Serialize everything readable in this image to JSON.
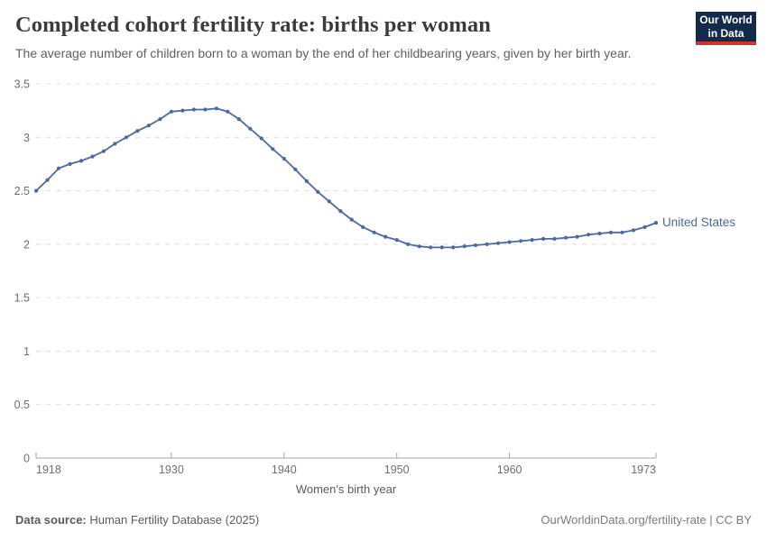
{
  "header": {
    "title": "Completed cohort fertility rate: births per woman",
    "subtitle": "The average number of children born to a woman by the end of her childbearing years, given by her birth year.",
    "logo_line1": "Our World",
    "logo_line2": "in Data"
  },
  "chart_data": {
    "type": "line",
    "title": "Completed cohort fertility rate: births per woman",
    "xlabel": "Women's birth year",
    "ylabel": "",
    "xlim": [
      1918,
      1973
    ],
    "ylim": [
      0,
      3.5
    ],
    "grid": "horizontal-dashed",
    "legend_position": "end-of-line",
    "xticks": [
      "1918",
      "1930",
      "1940",
      "1950",
      "1960",
      "1973"
    ],
    "xtick_values": [
      1918,
      1930,
      1940,
      1950,
      1960,
      1973
    ],
    "yticks": [
      "0",
      "0.5",
      "1",
      "1.5",
      "2",
      "2.5",
      "3",
      "3.5"
    ],
    "ytick_values": [
      0,
      0.5,
      1,
      1.5,
      2,
      2.5,
      3,
      3.5
    ],
    "x": [
      1918,
      1919,
      1920,
      1921,
      1922,
      1923,
      1924,
      1925,
      1926,
      1927,
      1928,
      1929,
      1930,
      1931,
      1932,
      1933,
      1934,
      1935,
      1936,
      1937,
      1938,
      1939,
      1940,
      1941,
      1942,
      1943,
      1944,
      1945,
      1946,
      1947,
      1948,
      1949,
      1950,
      1951,
      1952,
      1953,
      1954,
      1955,
      1956,
      1957,
      1958,
      1959,
      1960,
      1961,
      1962,
      1963,
      1964,
      1965,
      1966,
      1967,
      1968,
      1969,
      1970,
      1971,
      1972,
      1973
    ],
    "series": [
      {
        "name": "United States",
        "color": "#4C6A9C",
        "values": [
          2.5,
          2.6,
          2.71,
          2.75,
          2.78,
          2.82,
          2.87,
          2.94,
          3.0,
          3.06,
          3.11,
          3.17,
          3.24,
          3.25,
          3.26,
          3.26,
          3.27,
          3.24,
          3.17,
          3.08,
          2.99,
          2.89,
          2.8,
          2.7,
          2.59,
          2.49,
          2.4,
          2.31,
          2.23,
          2.16,
          2.11,
          2.07,
          2.04,
          2.0,
          1.98,
          1.97,
          1.97,
          1.97,
          1.98,
          1.99,
          2.0,
          2.01,
          2.02,
          2.03,
          2.04,
          2.05,
          2.05,
          2.06,
          2.07,
          2.09,
          2.1,
          2.11,
          2.11,
          2.13,
          2.16,
          2.2
        ]
      }
    ],
    "axis_color": "#a5a5a5",
    "gridline_color": "#dcdcdc",
    "tick_label_color": "#6e6e6e"
  },
  "footer": {
    "source_label": "Data source:",
    "source_value": " Human Fertility Database (2025)",
    "link": "OurWorldinData.org/fertility-rate | CC BY"
  },
  "colors": {
    "line": "#4C6A9C",
    "logo_bg": "#122B4C",
    "logo_red": "#CE3235",
    "title": "#3b3b3b",
    "subtitle": "#5f5f5f"
  }
}
